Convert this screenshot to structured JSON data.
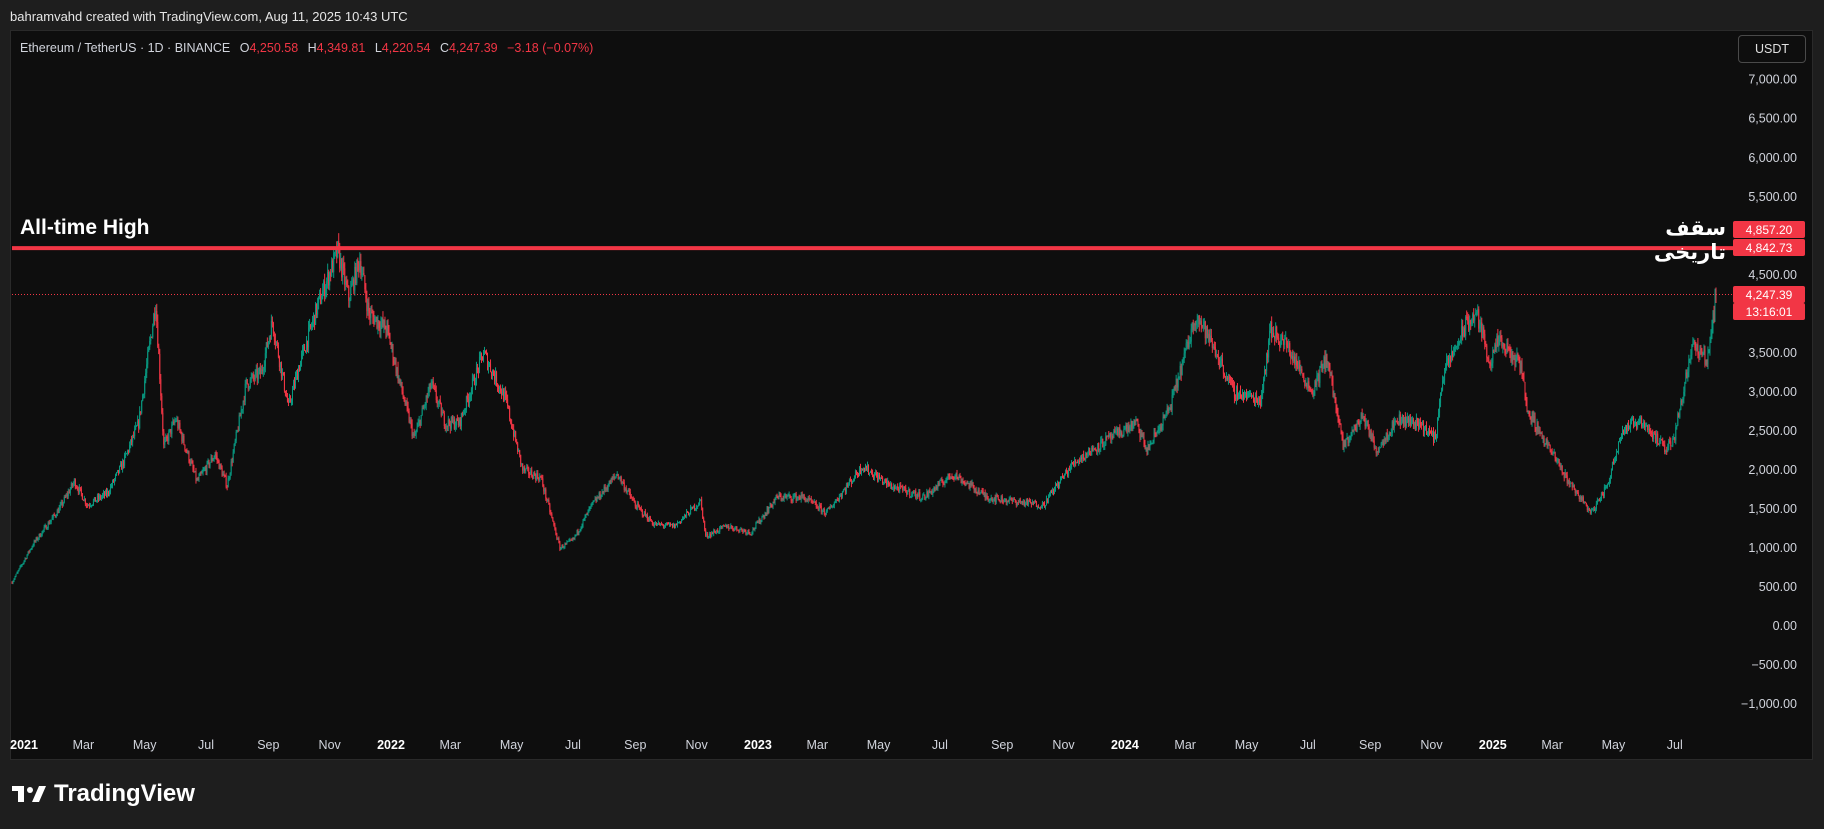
{
  "header": {
    "credit": "bahramvahd created with TradingView.com, Aug 11, 2025 10:43 UTC"
  },
  "legend": {
    "symbol": "Ethereum / TetherUS · 1D · BINANCE",
    "o_label": "O",
    "o_value": "4,250.58",
    "h_label": "H",
    "h_value": "4,349.81",
    "l_label": "L",
    "l_value": "4,220.54",
    "c_label": "C",
    "c_value": "4,247.39",
    "change": "−3.18 (−0.07%)"
  },
  "currency_button": "USDT",
  "annotations": {
    "ath_en": "All-time High",
    "ath_fa": "سقف تاریخی"
  },
  "price_tags": {
    "ath_high": "4,857.20",
    "ath_line": "4,842.73",
    "last_price": "4,247.39",
    "countdown": "13:16:01"
  },
  "footer": {
    "brand": "TradingView"
  },
  "colors": {
    "up": "#089981",
    "down": "#f23645",
    "background": "#0e0e0e",
    "ath_line": "#f23645"
  },
  "chart_data": {
    "type": "candlestick",
    "symbol": "ETHUSDT",
    "interval": "1D",
    "y_axis_ticks": [
      "7,000.00",
      "6,500.00",
      "6,000.00",
      "5,500.00",
      "4,500.00",
      "3,500.00",
      "3,000.00",
      "2,500.00",
      "2,000.00",
      "1,500.00",
      "1,000.00",
      "500.00",
      "0.00",
      "−500.00",
      "−1,000.00"
    ],
    "y_axis_values": [
      7000,
      6500,
      6000,
      5500,
      4500,
      3500,
      3000,
      2500,
      2000,
      1500,
      1000,
      500,
      0,
      -500,
      -1000
    ],
    "x_axis_ticks": [
      {
        "label": "2021",
        "year": true
      },
      {
        "label": "Mar"
      },
      {
        "label": "May"
      },
      {
        "label": "Jul"
      },
      {
        "label": "Sep"
      },
      {
        "label": "Nov"
      },
      {
        "label": "2022",
        "year": true
      },
      {
        "label": "Mar"
      },
      {
        "label": "May"
      },
      {
        "label": "Jul"
      },
      {
        "label": "Sep"
      },
      {
        "label": "Nov"
      },
      {
        "label": "2023",
        "year": true
      },
      {
        "label": "Mar"
      },
      {
        "label": "May"
      },
      {
        "label": "Jul"
      },
      {
        "label": "Sep"
      },
      {
        "label": "Nov"
      },
      {
        "label": "2024",
        "year": true
      },
      {
        "label": "Mar"
      },
      {
        "label": "May"
      },
      {
        "label": "Jul"
      },
      {
        "label": "Sep"
      },
      {
        "label": "Nov"
      },
      {
        "label": "2025",
        "year": true
      },
      {
        "label": "Mar"
      },
      {
        "label": "May"
      },
      {
        "label": "Jul"
      }
    ],
    "x_axis_dates": [
      "2021-01",
      "2021-03",
      "2021-05",
      "2021-07",
      "2021-09",
      "2021-11",
      "2022-01",
      "2022-03",
      "2022-05",
      "2022-07",
      "2022-09",
      "2022-11",
      "2023-01",
      "2023-03",
      "2023-05",
      "2023-07",
      "2023-09",
      "2023-11",
      "2024-01",
      "2024-03",
      "2024-05",
      "2024-07",
      "2024-09",
      "2024-11",
      "2025-01",
      "2025-03",
      "2025-05",
      "2025-07"
    ],
    "ath_level": 4842.73,
    "last_price": 4247.39,
    "price_path": [
      [
        "2020-12-20",
        560
      ],
      [
        "2021-01-10",
        1050
      ],
      [
        "2021-02-05",
        1500
      ],
      [
        "2021-02-20",
        1850
      ],
      [
        "2021-03-05",
        1550
      ],
      [
        "2021-03-25",
        1700
      ],
      [
        "2021-04-10",
        2100
      ],
      [
        "2021-04-25",
        2600
      ],
      [
        "2021-05-12",
        4150
      ],
      [
        "2021-05-20",
        2300
      ],
      [
        "2021-06-01",
        2650
      ],
      [
        "2021-06-22",
        1850
      ],
      [
        "2021-07-10",
        2200
      ],
      [
        "2021-07-22",
        1800
      ],
      [
        "2021-08-10",
        3100
      ],
      [
        "2021-08-25",
        3250
      ],
      [
        "2021-09-05",
        3900
      ],
      [
        "2021-09-21",
        2800
      ],
      [
        "2021-10-01",
        3300
      ],
      [
        "2021-10-20",
        4100
      ],
      [
        "2021-11-09",
        4800
      ],
      [
        "2021-11-20",
        4200
      ],
      [
        "2021-12-01",
        4700
      ],
      [
        "2021-12-10",
        4000
      ],
      [
        "2021-12-28",
        3800
      ],
      [
        "2022-01-10",
        3100
      ],
      [
        "2022-01-24",
        2400
      ],
      [
        "2022-02-10",
        3100
      ],
      [
        "2022-02-24",
        2600
      ],
      [
        "2022-03-10",
        2600
      ],
      [
        "2022-04-03",
        3500
      ],
      [
        "2022-04-25",
        2900
      ],
      [
        "2022-05-12",
        2000
      ],
      [
        "2022-05-30",
        1900
      ],
      [
        "2022-06-18",
        1000
      ],
      [
        "2022-07-01",
        1100
      ],
      [
        "2022-07-20",
        1550
      ],
      [
        "2022-08-14",
        1950
      ],
      [
        "2022-09-01",
        1550
      ],
      [
        "2022-09-20",
        1300
      ],
      [
        "2022-10-10",
        1280
      ],
      [
        "2022-11-05",
        1600
      ],
      [
        "2022-11-10",
        1150
      ],
      [
        "2022-12-01",
        1280
      ],
      [
        "2022-12-25",
        1200
      ],
      [
        "2023-01-20",
        1650
      ],
      [
        "2023-02-15",
        1650
      ],
      [
        "2023-03-10",
        1450
      ],
      [
        "2023-04-15",
        2050
      ],
      [
        "2023-05-12",
        1800
      ],
      [
        "2023-06-15",
        1650
      ],
      [
        "2023-07-14",
        1950
      ],
      [
        "2023-08-17",
        1650
      ],
      [
        "2023-09-12",
        1600
      ],
      [
        "2023-10-12",
        1550
      ],
      [
        "2023-10-25",
        1800
      ],
      [
        "2023-11-12",
        2100
      ],
      [
        "2023-12-10",
        2350
      ],
      [
        "2024-01-12",
        2600
      ],
      [
        "2024-01-23",
        2250
      ],
      [
        "2024-02-15",
        2800
      ],
      [
        "2024-03-12",
        4000
      ],
      [
        "2024-04-01",
        3500
      ],
      [
        "2024-04-18",
        3000
      ],
      [
        "2024-05-15",
        2900
      ],
      [
        "2024-05-25",
        3800
      ],
      [
        "2024-06-10",
        3600
      ],
      [
        "2024-07-05",
        3000
      ],
      [
        "2024-07-20",
        3450
      ],
      [
        "2024-08-05",
        2300
      ],
      [
        "2024-08-25",
        2700
      ],
      [
        "2024-09-07",
        2250
      ],
      [
        "2024-09-28",
        2650
      ],
      [
        "2024-10-20",
        2600
      ],
      [
        "2024-11-05",
        2400
      ],
      [
        "2024-11-12",
        3200
      ],
      [
        "2024-12-05",
        3850
      ],
      [
        "2024-12-16",
        4000
      ],
      [
        "2024-12-30",
        3350
      ],
      [
        "2025-01-06",
        3650
      ],
      [
        "2025-01-31",
        3300
      ],
      [
        "2025-02-03",
        2800
      ],
      [
        "2025-02-25",
        2300
      ],
      [
        "2025-03-15",
        1900
      ],
      [
        "2025-04-09",
        1450
      ],
      [
        "2025-04-25",
        1800
      ],
      [
        "2025-05-09",
        2500
      ],
      [
        "2025-05-28",
        2650
      ],
      [
        "2025-06-22",
        2250
      ],
      [
        "2025-07-01",
        2450
      ],
      [
        "2025-07-18",
        3600
      ],
      [
        "2025-08-02",
        3400
      ],
      [
        "2025-08-11",
        4247
      ]
    ]
  }
}
